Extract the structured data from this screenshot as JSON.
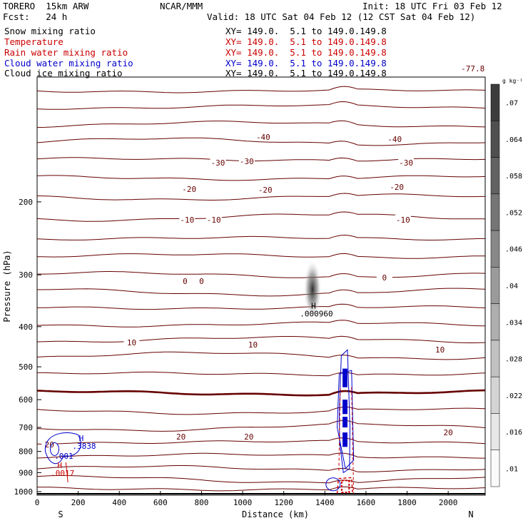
{
  "header": {
    "model": "TORERO  15km ARW",
    "org": "NCAR/MMM",
    "init": "Init: 18 UTC Fri 03 Feb 12",
    "fcst": "Fcst:   24 h",
    "valid": "Valid: 18 UTC Sat 04 Feb 12 (12 CST Sat 04 Feb 12)"
  },
  "legend": [
    {
      "name": "Snow mixing ratio",
      "xy": "XY= 149.0.  5.1 to 149.0.149.8",
      "color": "#000000"
    },
    {
      "name": "Temperature",
      "xy": "XY= 149.0.  5.1 to 149.0.149.8",
      "color": "#cc0000"
    },
    {
      "name": "Rain water mixing ratio",
      "xy": "XY= 149.0.  5.1 to 149.0.149.8",
      "color": "#cc0000"
    },
    {
      "name": "Cloud water mixing ratio",
      "xy": "XY= 149.0.  5.1 to 149.0.149.8",
      "color": "#0000cc"
    },
    {
      "name": "Cloud ice mixing ratio",
      "xy": "XY= 149.0.  5.1 to 149.0.149.8",
      "color": "#000000"
    }
  ],
  "chart_data": {
    "type": "contour",
    "xlabel": "Distance (km)",
    "ylabel": "Pressure (hPa)",
    "x_ticks": [
      0,
      200,
      400,
      600,
      800,
      1000,
      1200,
      1400,
      1600,
      1800,
      2000
    ],
    "y_ticks": [
      200,
      300,
      400,
      500,
      600,
      700,
      800,
      900,
      1000
    ],
    "xlim": [
      0,
      2180
    ],
    "ylim": [
      1020,
      100
    ],
    "y_scale": "log",
    "end_labels": {
      "left": "S",
      "right": "N"
    },
    "temperature_labels": [
      "-77.8",
      "-40",
      "-30",
      "-20",
      "-10",
      "0",
      "10",
      "20"
    ],
    "colorbar": {
      "unit": "g kg⁻¹",
      "ticks": [
        ".07",
        ".064",
        ".058",
        ".052",
        ".046",
        ".04",
        ".034",
        ".028",
        ".022",
        ".016",
        ".01"
      ]
    },
    "annotations": [
      {
        "text": "H",
        "sub": ".000960",
        "color": "#000000",
        "series": "Snow mixing ratio"
      },
      {
        "text": "H",
        "sub": ".3838",
        "color": "#0000cc",
        "series": "Cloud water mixing ratio"
      },
      {
        "text": ".001",
        "color": "#0000cc",
        "series": "Cloud water mixing ratio"
      },
      {
        "text": "H",
        "sub": ".0017",
        "color": "#cc0000",
        "series": "Rain water mixing ratio"
      }
    ]
  }
}
